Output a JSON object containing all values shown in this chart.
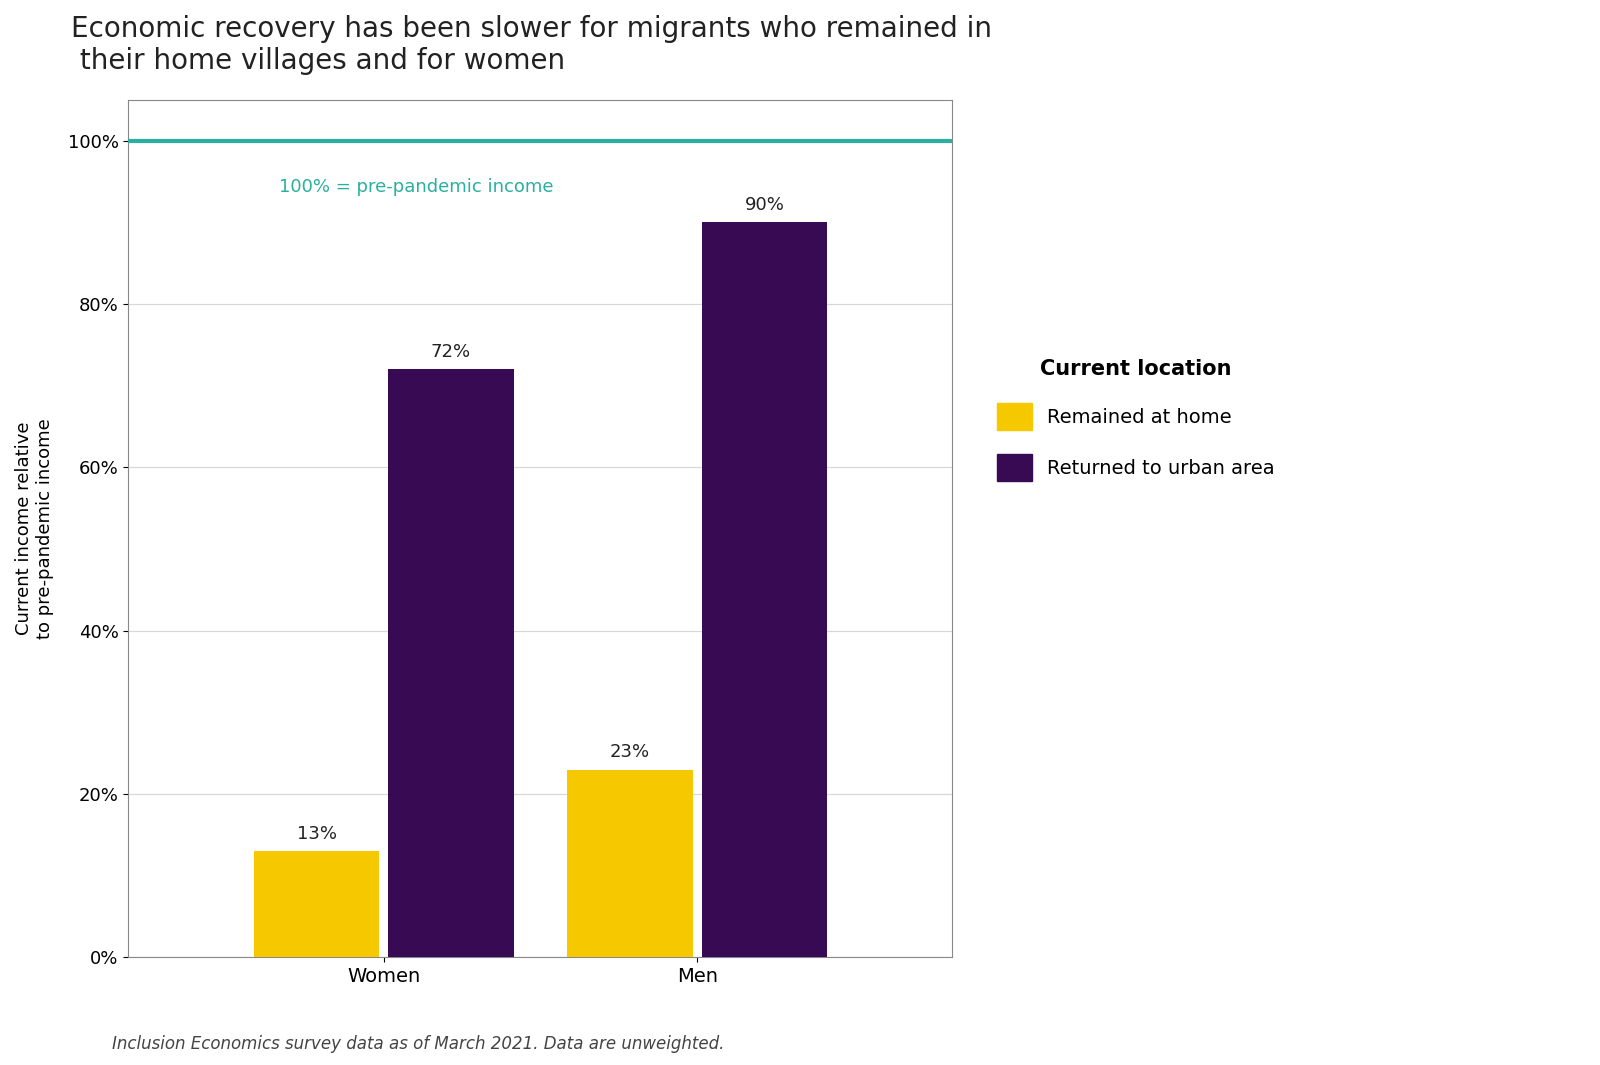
{
  "title": "Economic recovery has been slower for migrants who remained in\n their home villages and for women",
  "ylabel": "Current income relative\nto pre-pandemic income",
  "xlabel": "",
  "categories": [
    "Women",
    "Men"
  ],
  "series": {
    "Remained at home": [
      13,
      23
    ],
    "Returned to urban area": [
      72,
      90
    ]
  },
  "bar_colors": {
    "Remained at home": "#F5C800",
    "Returned to urban area": "#380A54"
  },
  "bar_labels": {
    "Remained at home": [
      "13%",
      "23%"
    ],
    "Returned to urban area": [
      "72%",
      "90%"
    ]
  },
  "ylim": [
    0,
    105
  ],
  "yticks": [
    0,
    20,
    40,
    60,
    80,
    100
  ],
  "ytick_labels": [
    "0%",
    "20%",
    "40%",
    "60%",
    "80%",
    "100%"
  ],
  "reference_line_y": 100,
  "reference_line_color": "#2AAFA0",
  "reference_line_label": "100% = pre-pandemic income",
  "legend_title": "Current location",
  "legend_entries": [
    "Remained at home",
    "Returned to urban area"
  ],
  "footnote": "Inclusion Economics survey data as of March 2021. Data are unweighted.",
  "title_fontsize": 20,
  "axis_fontsize": 13,
  "tick_fontsize": 13,
  "bar_label_fontsize": 13,
  "legend_fontsize": 13,
  "footnote_fontsize": 12,
  "background_color": "#FFFFFF",
  "bar_width": 0.28,
  "group_centers": [
    0.35,
    1.05
  ]
}
